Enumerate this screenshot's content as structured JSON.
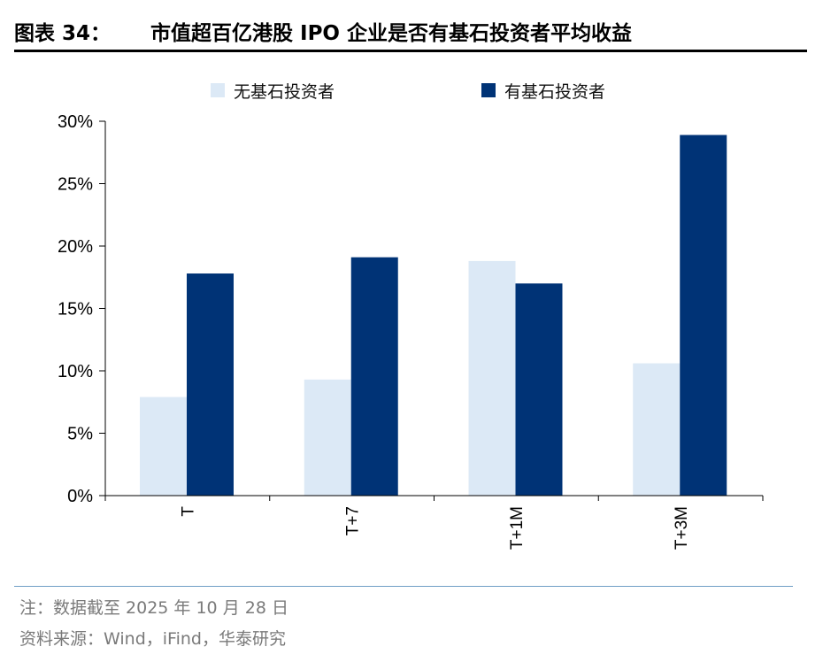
{
  "figure": {
    "label": "图表 34：",
    "title": "市值超百亿港股 IPO 企业是否有基石投资者平均收益"
  },
  "chart_data": {
    "type": "bar",
    "categories": [
      "T",
      "T+7",
      "T+1M",
      "T+3M"
    ],
    "series": [
      {
        "name": "无基石投资者",
        "color": "#dce9f6",
        "values": [
          7.9,
          9.3,
          18.8,
          10.6
        ]
      },
      {
        "name": "有基石投资者",
        "color": "#003376",
        "values": [
          17.8,
          19.1,
          17.0,
          28.9
        ]
      }
    ],
    "ylim": [
      0,
      30
    ],
    "yticks": [
      0,
      5,
      10,
      15,
      20,
      25,
      30
    ],
    "ytick_labels": [
      "0%",
      "5%",
      "10%",
      "15%",
      "20%",
      "25%",
      "30%"
    ],
    "grid": false,
    "legend_position": "top"
  },
  "footer": {
    "note": "注：数据截至 2025 年 10 月 28 日",
    "source": "资料来源：Wind，iFind，华泰研究"
  }
}
